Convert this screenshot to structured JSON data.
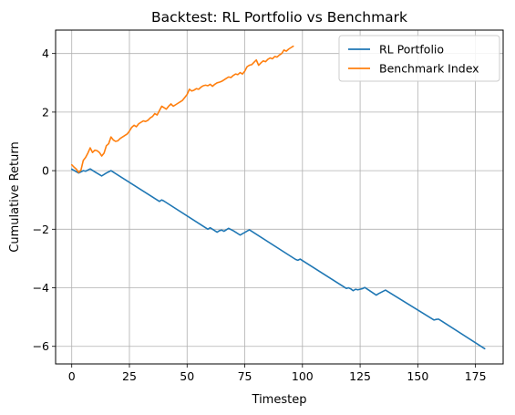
{
  "chart_data": {
    "type": "line",
    "title": "Backtest: RL Portfolio vs Benchmark",
    "xlabel": "Timestep",
    "ylabel": "Cumulative Return",
    "xlim": [
      -7,
      187
    ],
    "ylim": [
      -6.6,
      4.8
    ],
    "xticks": [
      0,
      25,
      50,
      75,
      100,
      125,
      150,
      175
    ],
    "yticks": [
      -6,
      -4,
      -2,
      0,
      2,
      4
    ],
    "grid": true,
    "legend_position": "top-right",
    "series": [
      {
        "name": "RL Portfolio",
        "color": "#1f77b4",
        "points": [
          [
            0,
            0.05
          ],
          [
            3,
            -0.08
          ],
          [
            5,
            0.0
          ],
          [
            6,
            -0.02
          ],
          [
            8,
            0.06
          ],
          [
            10,
            -0.04
          ],
          [
            13,
            -0.18
          ],
          [
            15,
            -0.08
          ],
          [
            17,
            0.0
          ],
          [
            38,
            -1.05
          ],
          [
            39,
            -1.0
          ],
          [
            40,
            -1.04
          ],
          [
            58,
            -1.95
          ],
          [
            59,
            -2.0
          ],
          [
            60,
            -1.95
          ],
          [
            63,
            -2.1
          ],
          [
            64,
            -2.05
          ],
          [
            65,
            -2.03
          ],
          [
            66,
            -2.07
          ],
          [
            68,
            -1.97
          ],
          [
            70,
            -2.05
          ],
          [
            73,
            -2.2
          ],
          [
            77,
            -2.02
          ],
          [
            97,
            -3.03
          ],
          [
            98,
            -3.06
          ],
          [
            99,
            -3.02
          ],
          [
            100,
            -3.07
          ],
          [
            119,
            -4.02
          ],
          [
            120,
            -4.0
          ],
          [
            121,
            -4.04
          ],
          [
            122,
            -4.1
          ],
          [
            123,
            -4.05
          ],
          [
            124,
            -4.07
          ],
          [
            126,
            -4.03
          ],
          [
            127,
            -3.99
          ],
          [
            128,
            -4.04
          ],
          [
            132,
            -4.25
          ],
          [
            133,
            -4.2
          ],
          [
            136,
            -4.08
          ],
          [
            157,
            -5.1
          ],
          [
            158,
            -5.08
          ],
          [
            159,
            -5.07
          ],
          [
            160,
            -5.12
          ],
          [
            179,
            -6.08
          ]
        ]
      },
      {
        "name": "Benchmark Index",
        "color": "#ff7f0e",
        "points": [
          [
            0,
            0.2
          ],
          [
            1,
            0.12
          ],
          [
            2,
            0.05
          ],
          [
            3,
            -0.06
          ],
          [
            4,
            0.02
          ],
          [
            5,
            0.35
          ],
          [
            6,
            0.45
          ],
          [
            7,
            0.6
          ],
          [
            8,
            0.78
          ],
          [
            9,
            0.62
          ],
          [
            10,
            0.7
          ],
          [
            11,
            0.68
          ],
          [
            12,
            0.62
          ],
          [
            13,
            0.5
          ],
          [
            14,
            0.6
          ],
          [
            15,
            0.85
          ],
          [
            16,
            0.92
          ],
          [
            17,
            1.15
          ],
          [
            18,
            1.05
          ],
          [
            19,
            1.0
          ],
          [
            20,
            1.02
          ],
          [
            21,
            1.1
          ],
          [
            22,
            1.15
          ],
          [
            23,
            1.2
          ],
          [
            24,
            1.25
          ],
          [
            25,
            1.35
          ],
          [
            26,
            1.48
          ],
          [
            27,
            1.55
          ],
          [
            28,
            1.5
          ],
          [
            29,
            1.6
          ],
          [
            30,
            1.65
          ],
          [
            31,
            1.7
          ],
          [
            32,
            1.68
          ],
          [
            33,
            1.72
          ],
          [
            34,
            1.8
          ],
          [
            35,
            1.85
          ],
          [
            36,
            1.95
          ],
          [
            37,
            1.9
          ],
          [
            38,
            2.05
          ],
          [
            39,
            2.2
          ],
          [
            40,
            2.15
          ],
          [
            41,
            2.1
          ],
          [
            42,
            2.2
          ],
          [
            43,
            2.28
          ],
          [
            44,
            2.2
          ],
          [
            45,
            2.25
          ],
          [
            46,
            2.3
          ],
          [
            47,
            2.35
          ],
          [
            48,
            2.4
          ],
          [
            49,
            2.5
          ],
          [
            50,
            2.6
          ],
          [
            51,
            2.78
          ],
          [
            52,
            2.72
          ],
          [
            53,
            2.75
          ],
          [
            54,
            2.8
          ],
          [
            55,
            2.78
          ],
          [
            56,
            2.85
          ],
          [
            57,
            2.9
          ],
          [
            58,
            2.92
          ],
          [
            59,
            2.9
          ],
          [
            60,
            2.95
          ],
          [
            61,
            2.88
          ],
          [
            62,
            2.95
          ],
          [
            63,
            3.0
          ],
          [
            64,
            3.02
          ],
          [
            65,
            3.05
          ],
          [
            66,
            3.1
          ],
          [
            67,
            3.15
          ],
          [
            68,
            3.2
          ],
          [
            69,
            3.18
          ],
          [
            70,
            3.25
          ],
          [
            71,
            3.3
          ],
          [
            72,
            3.28
          ],
          [
            73,
            3.35
          ],
          [
            74,
            3.3
          ],
          [
            75,
            3.4
          ],
          [
            76,
            3.55
          ],
          [
            77,
            3.6
          ],
          [
            78,
            3.62
          ],
          [
            79,
            3.7
          ],
          [
            80,
            3.78
          ],
          [
            81,
            3.6
          ],
          [
            82,
            3.68
          ],
          [
            83,
            3.75
          ],
          [
            84,
            3.72
          ],
          [
            85,
            3.8
          ],
          [
            86,
            3.85
          ],
          [
            87,
            3.82
          ],
          [
            88,
            3.9
          ],
          [
            89,
            3.88
          ],
          [
            90,
            3.95
          ],
          [
            91,
            4.0
          ],
          [
            92,
            4.12
          ],
          [
            93,
            4.08
          ],
          [
            94,
            4.15
          ],
          [
            95,
            4.2
          ],
          [
            96,
            4.25
          ]
        ]
      }
    ]
  }
}
